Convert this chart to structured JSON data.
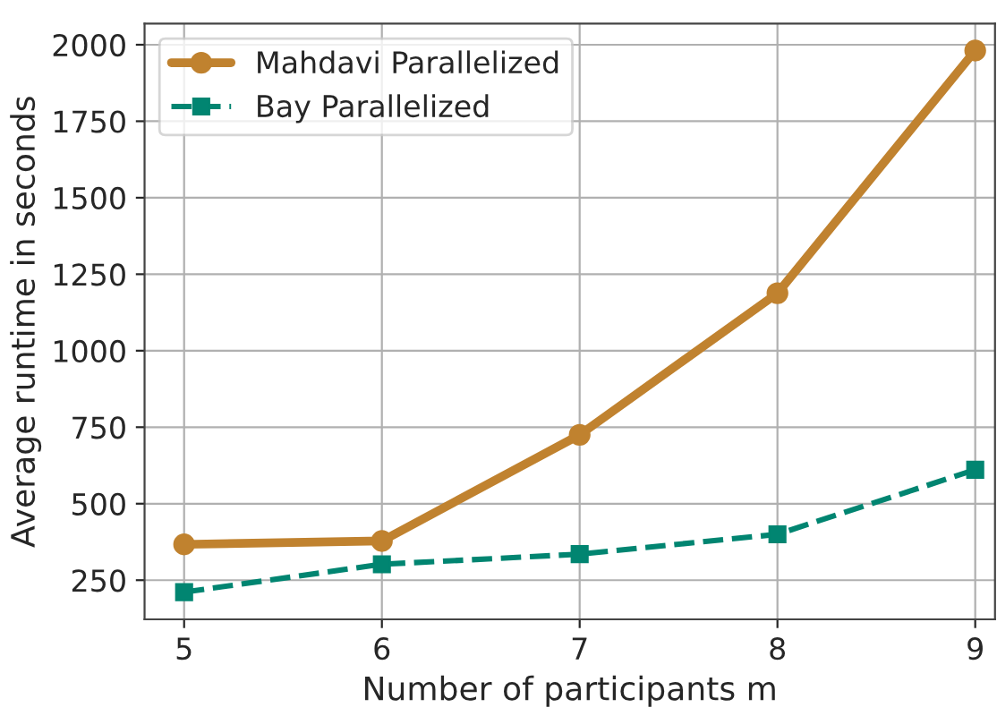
{
  "chart_data": {
    "type": "line",
    "xlabel": "Number of participants m",
    "ylabel": "Average runtime in seconds",
    "x": [
      5,
      6,
      7,
      8,
      9
    ],
    "series": [
      {
        "name": "Mahdavi Parallelized",
        "color": "#c0822f",
        "values": [
          367,
          378,
          725,
          1188,
          1981
        ],
        "marker": "circle",
        "line_style": "solid"
      },
      {
        "name": "Bay Parallelized",
        "color": "#018571",
        "values": [
          211,
          302,
          335,
          400,
          611
        ],
        "marker": "square",
        "line_style": "dashed"
      }
    ],
    "xlim": [
      4.8,
      9.1
    ],
    "xticks": [
      5,
      6,
      7,
      8,
      9
    ],
    "ylim": [
      122,
      2069
    ],
    "yticks": [
      250,
      500,
      750,
      1000,
      1250,
      1500,
      1750,
      2000
    ],
    "grid": true,
    "legend": "top left"
  }
}
